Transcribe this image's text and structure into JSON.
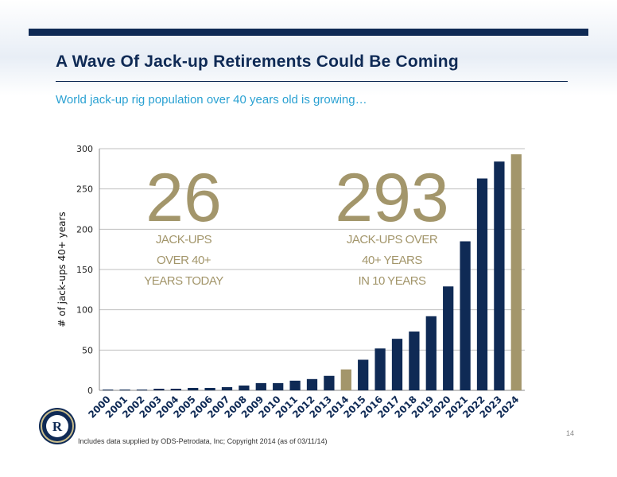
{
  "slide": {
    "title": "A Wave Of Jack-up Retirements Could Be Coming",
    "subtitle": "World jack-up rig population over 40 years old is growing…",
    "footnote": "Includes data supplied by ODS-Petrodata, Inc; Copyright 2014 (as of 03/11/14)",
    "page_number": "14",
    "logo_letter": "R"
  },
  "callouts": {
    "left": {
      "number": "26",
      "lines": [
        "JACK-UPS",
        "OVER 40+",
        "YEARS TODAY"
      ]
    },
    "right": {
      "number": "293",
      "lines": [
        "JACK-UPS OVER",
        "40+ YEARS",
        "IN 10 YEARS"
      ]
    }
  },
  "colors": {
    "navy": "#0f2a55",
    "gold": "#a3966b",
    "accent": "#2aa1d2",
    "grid": "#bfbfbf"
  },
  "chart_data": {
    "type": "bar",
    "ylabel": "# of jack-ups 40+ years",
    "ylim": [
      0,
      300
    ],
    "yticks": [
      0,
      50,
      100,
      150,
      200,
      250,
      300
    ],
    "grid": true,
    "categories": [
      "2000",
      "2001",
      "2002",
      "2003",
      "2004",
      "2005",
      "2006",
      "2007",
      "2008",
      "2009",
      "2010",
      "2011",
      "2012",
      "2013",
      "2014",
      "2015",
      "2016",
      "2017",
      "2018",
      "2019",
      "2020",
      "2021",
      "2022",
      "2023",
      "2024"
    ],
    "values": [
      1,
      1,
      1,
      2,
      2,
      3,
      3,
      4,
      6,
      9,
      9,
      12,
      14,
      18,
      26,
      38,
      52,
      64,
      73,
      92,
      129,
      185,
      263,
      284,
      293
    ],
    "highlight": {
      "2014": "gold",
      "2024": "gold"
    }
  }
}
